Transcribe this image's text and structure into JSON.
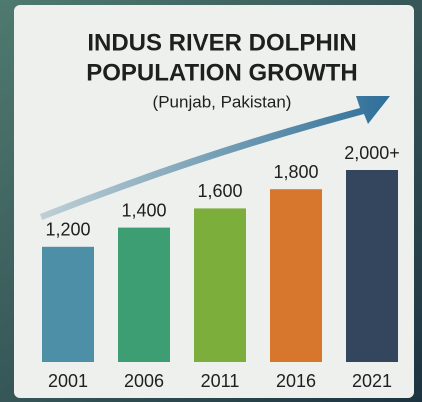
{
  "chart_data": {
    "type": "bar",
    "title": [
      "INDUS RIVER DOLPHIN",
      "POPULATION GROWTH"
    ],
    "subtitle": "(Punjab, Pakistan)",
    "categories": [
      "2001",
      "2006",
      "2011",
      "2016",
      "2021"
    ],
    "values": [
      1200,
      1400,
      1600,
      1800,
      2000
    ],
    "value_labels": [
      "1,200",
      "1,400",
      "1,600",
      "1,800",
      "2,000+"
    ],
    "colors": [
      "#4d8fa6",
      "#3e9e73",
      "#7cae3c",
      "#d7772d",
      "#34465e"
    ]
  }
}
